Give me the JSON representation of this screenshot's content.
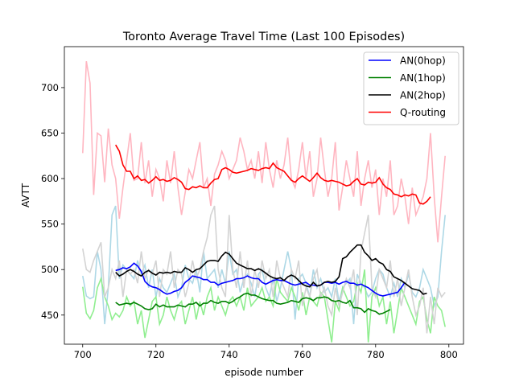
{
  "chart_data": {
    "type": "line",
    "title": "Toronto Average Travel Time (Last 100 Episodes)",
    "xlabel": "episode number",
    "ylabel": "AVTT",
    "xlim": [
      695,
      804
    ],
    "ylim": [
      418,
      745
    ],
    "xticks": [
      700,
      720,
      740,
      760,
      780,
      800
    ],
    "yticks": [
      450,
      500,
      550,
      600,
      650,
      700
    ],
    "grid": false,
    "legend_position": "top-right",
    "raw_start_episode": 700,
    "smooth_start_episode": 709,
    "series": [
      {
        "name": "AN(0hop)",
        "color": "#0000ff",
        "raw_color": "#add8e6",
        "raw": [
          493,
          471,
          468,
          470,
          520,
          500,
          440,
          480,
          560,
          570,
          490,
          505,
          500,
          495,
          490,
          510,
          495,
          505,
          480,
          500,
          470,
          490,
          480,
          475,
          485,
          495,
          470,
          480,
          505,
          490,
          485,
          500,
          475,
          520,
          490,
          495,
          500,
          480,
          500,
          485,
          520,
          495,
          500,
          475,
          490,
          495,
          485,
          470,
          495,
          500,
          480,
          470,
          490,
          465,
          480,
          500,
          520,
          500,
          445,
          490,
          495,
          485,
          470,
          500,
          480,
          490,
          475,
          480,
          470,
          490,
          465,
          480,
          485,
          490,
          440,
          495,
          485,
          480,
          470,
          475,
          490,
          500,
          495,
          480,
          470,
          485,
          470,
          490,
          480,
          495,
          475,
          470,
          480,
          500,
          490,
          480,
          460,
          470,
          520,
          560
        ],
        "smooth": [
          499,
          500,
          502,
          501,
          503,
          507,
          504,
          498,
          487,
          483,
          481,
          480,
          478,
          475,
          473,
          474,
          476,
          477,
          480,
          486,
          489,
          493,
          492,
          491,
          489,
          489,
          486,
          486,
          483,
          485,
          486,
          487,
          488,
          490,
          490,
          491,
          493,
          491,
          490,
          490,
          486,
          484,
          486,
          488,
          489,
          488,
          488,
          486,
          484,
          483,
          484,
          485,
          486,
          483,
          483,
          482,
          483,
          486,
          486,
          485,
          486,
          484,
          486,
          487,
          485,
          485,
          483,
          484,
          482,
          480,
          477,
          474,
          472,
          471,
          472,
          473,
          474,
          475,
          480,
          486
        ]
      },
      {
        "name": "AN(1hop)",
        "color": "#008000",
        "raw_color": "#90ee90",
        "raw": [
          481,
          452,
          446,
          455,
          480,
          490,
          470,
          460,
          445,
          452,
          448,
          455,
          470,
          460,
          465,
          440,
          455,
          425,
          445,
          465,
          470,
          440,
          450,
          470,
          455,
          445,
          460,
          465,
          440,
          455,
          470,
          445,
          465,
          450,
          470,
          480,
          455,
          470,
          460,
          450,
          465,
          470,
          460,
          470,
          455,
          480,
          460,
          465,
          470,
          480,
          465,
          470,
          460,
          490,
          475,
          470,
          465,
          480,
          470,
          455,
          475,
          450,
          470,
          465,
          460,
          475,
          470,
          445,
          420,
          465,
          455,
          480,
          470,
          460,
          465,
          485,
          475,
          500,
          420,
          470,
          480,
          460,
          470,
          440,
          465,
          430,
          455,
          480,
          470,
          460,
          450,
          440,
          465,
          470,
          445,
          430,
          470,
          460,
          455,
          437
        ],
        "smooth": [
          464,
          461,
          462,
          463,
          462,
          464,
          462,
          460,
          457,
          456,
          457,
          462,
          459,
          461,
          459,
          459,
          459,
          461,
          460,
          459,
          462,
          462,
          464,
          460,
          463,
          463,
          466,
          464,
          463,
          465,
          465,
          463,
          465,
          468,
          470,
          473,
          474,
          472,
          472,
          470,
          468,
          467,
          466,
          466,
          463,
          462,
          463,
          464,
          466,
          465,
          464,
          468,
          469,
          468,
          466,
          469,
          469,
          470,
          469,
          466,
          465,
          466,
          464,
          463,
          466,
          458,
          458,
          457,
          453,
          457,
          455,
          454,
          451,
          452,
          454,
          456
        ]
      },
      {
        "name": "AN(2hop)",
        "color": "#000000",
        "raw_color": "#d3d3d3",
        "raw": [
          523,
          500,
          497,
          510,
          520,
          530,
          470,
          480,
          500,
          490,
          510,
          470,
          500,
          495,
          500,
          485,
          520,
          490,
          500,
          495,
          510,
          470,
          500,
          495,
          520,
          480,
          500,
          495,
          470,
          485,
          510,
          490,
          500,
          520,
          535,
          560,
          570,
          500,
          480,
          470,
          560,
          500,
          480,
          520,
          480,
          510,
          470,
          500,
          480,
          510,
          490,
          500,
          470,
          510,
          490,
          480,
          470,
          500,
          490,
          510,
          460,
          480,
          470,
          490,
          500,
          470,
          480,
          460,
          450,
          480,
          460,
          475,
          490,
          480,
          500,
          450,
          520,
          540,
          560,
          480,
          470,
          500,
          490,
          480,
          510,
          470,
          490,
          460,
          480,
          500,
          470,
          450,
          460,
          480,
          430,
          470,
          440,
          480,
          470,
          475
        ],
        "smooth": [
          497,
          493,
          495,
          498,
          500,
          498,
          495,
          493,
          497,
          499,
          496,
          494,
          497,
          496,
          497,
          496,
          498,
          497,
          497,
          502,
          500,
          497,
          500,
          501,
          505,
          509,
          510,
          510,
          509,
          515,
          519,
          517,
          512,
          507,
          505,
          503,
          501,
          501,
          499,
          501,
          499,
          496,
          493,
          491,
          490,
          491,
          488,
          492,
          494,
          492,
          488,
          484,
          482,
          481,
          486,
          482,
          483,
          486,
          487,
          486,
          487,
          492,
          512,
          514,
          519,
          523,
          527,
          527,
          519,
          515,
          510,
          512,
          508,
          506,
          500,
          498,
          492,
          490,
          488,
          485,
          482,
          479,
          478,
          477,
          473,
          474
        ]
      },
      {
        "name": "Q-routing",
        "color": "#ff0000",
        "raw_color": "#ffb6c1",
        "raw": [
          628,
          729,
          705,
          582,
          650,
          647,
          596,
          655,
          615,
          600,
          556,
          590,
          620,
          650,
          598,
          600,
          640,
          595,
          620,
          580,
          610,
          600,
          575,
          620,
          595,
          630,
          590,
          560,
          585,
          610,
          600,
          620,
          640,
          590,
          600,
          570,
          605,
          615,
          630,
          620,
          600,
          610,
          620,
          645,
          630,
          610,
          620,
          600,
          630,
          595,
          640,
          610,
          590,
          620,
          600,
          615,
          645,
          600,
          590,
          610,
          640,
          600,
          630,
          580,
          600,
          645,
          610,
          580,
          600,
          640,
          565,
          590,
          620,
          600,
          580,
          630,
          570,
          600,
          620,
          590,
          610,
          560,
          600,
          580,
          620,
          560,
          570,
          600,
          580,
          550,
          590,
          560,
          570,
          580,
          600,
          650,
          580,
          530,
          580,
          625
        ],
        "smooth": [
          637,
          630,
          615,
          608,
          608,
          600,
          603,
          598,
          599,
          595,
          598,
          602,
          598,
          599,
          597,
          598,
          601,
          599,
          596,
          589,
          588,
          591,
          590,
          592,
          590,
          590,
          595,
          599,
          600,
          610,
          612,
          610,
          607,
          606,
          607,
          608,
          609,
          611,
          610,
          609,
          611,
          612,
          611,
          617,
          612,
          610,
          608,
          603,
          598,
          596,
          600,
          603,
          600,
          597,
          601,
          606,
          601,
          598,
          597,
          598,
          597,
          596,
          594,
          592,
          593,
          597,
          600,
          594,
          593,
          596,
          595,
          596,
          601,
          594,
          590,
          588,
          583,
          582,
          580,
          582,
          581,
          583,
          582,
          573,
          572,
          575,
          580
        ]
      }
    ]
  }
}
